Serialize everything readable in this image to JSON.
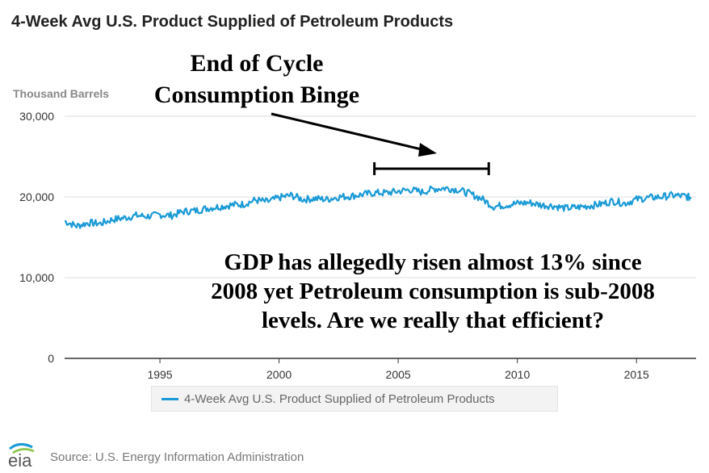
{
  "colors": {
    "series": "#1a9ad6",
    "axis": "#333333",
    "grid": "#dddddd",
    "tick_text": "#333333"
  },
  "header": {
    "title": "4-Week Avg U.S. Product Supplied of Petroleum Products"
  },
  "annotations": {
    "cycle_line1": "End of Cycle",
    "cycle_line2": "Consumption Binge",
    "gdp_line1": "GDP has allegedly risen almost 13% since",
    "gdp_line2": "2008 yet Petroleum consumption is sub-2008",
    "gdp_line3": "levels. Are we really that efficient?",
    "bracket_range": [
      2004,
      2008.8
    ]
  },
  "footer": {
    "source": "Source: U.S. Energy Information Administration",
    "logo_text": "eia",
    "logo_icon": "eia-wave-icon"
  },
  "chart_data": {
    "type": "line",
    "title": "4-Week Avg U.S. Product Supplied of Petroleum Products",
    "ylabel": "Thousand Barrels",
    "xlim": [
      1991,
      2017.5
    ],
    "ylim": [
      0,
      30000
    ],
    "yticks": [
      0,
      10000,
      20000,
      30000
    ],
    "ytick_labels": [
      "0",
      "10,000",
      "20,000",
      "30,000"
    ],
    "xticks": [
      1995,
      2000,
      2005,
      2010,
      2015
    ],
    "xtick_labels": [
      "1995",
      "2000",
      "2005",
      "2010",
      "2015"
    ],
    "grid": true,
    "legend_position": "bottom",
    "series": [
      {
        "name": "4-Week Avg U.S. Product Supplied of Petroleum Products",
        "x": [
          1991.0,
          1991.5,
          1992.0,
          1992.5,
          1993.0,
          1993.5,
          1994.0,
          1994.5,
          1995.0,
          1995.5,
          1996.0,
          1996.5,
          1997.0,
          1997.5,
          1998.0,
          1998.5,
          1999.0,
          1999.5,
          2000.0,
          2000.5,
          2001.0,
          2001.5,
          2002.0,
          2002.5,
          2003.0,
          2003.5,
          2004.0,
          2004.5,
          2005.0,
          2005.5,
          2006.0,
          2006.5,
          2007.0,
          2007.5,
          2008.0,
          2008.5,
          2009.0,
          2009.5,
          2010.0,
          2010.5,
          2011.0,
          2011.5,
          2012.0,
          2012.5,
          2013.0,
          2013.5,
          2014.0,
          2014.5,
          2015.0,
          2015.5,
          2016.0,
          2016.5,
          2017.0,
          2017.3
        ],
        "values": [
          17000,
          16400,
          16800,
          16700,
          17200,
          17400,
          17700,
          17600,
          17800,
          17700,
          18200,
          18300,
          18600,
          18800,
          19000,
          19100,
          19600,
          19400,
          19900,
          20200,
          19700,
          19800,
          19700,
          20000,
          20100,
          20300,
          20500,
          20500,
          20700,
          20900,
          20600,
          21000,
          21100,
          20900,
          20400,
          19800,
          18800,
          19000,
          19200,
          19300,
          19000,
          18900,
          18600,
          18700,
          18900,
          19100,
          19500,
          19200,
          19700,
          19900,
          20000,
          20200,
          20100,
          19900
        ]
      }
    ]
  }
}
